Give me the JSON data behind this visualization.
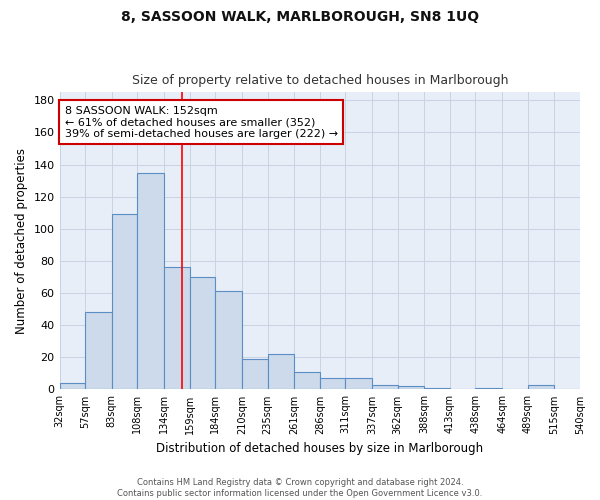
{
  "title1": "8, SASSOON WALK, MARLBOROUGH, SN8 1UQ",
  "title2": "Size of property relative to detached houses in Marlborough",
  "xlabel": "Distribution of detached houses by size in Marlborough",
  "ylabel": "Number of detached properties",
  "bin_edges": [
    32,
    57,
    83,
    108,
    134,
    159,
    184,
    210,
    235,
    261,
    286,
    311,
    337,
    362,
    388,
    413,
    438,
    464,
    489,
    515,
    540
  ],
  "bar_heights": [
    4,
    48,
    109,
    135,
    76,
    70,
    61,
    19,
    22,
    11,
    7,
    7,
    3,
    2,
    1,
    0,
    1,
    0,
    3,
    0
  ],
  "bar_color": "#ccdaeb",
  "bar_edge_color": "#5b8ec4",
  "red_line_x": 152,
  "annotation_line1": "8 SASSOON WALK: 152sqm",
  "annotation_line2": "← 61% of detached houses are smaller (352)",
  "annotation_line3": "39% of semi-detached houses are larger (222) →",
  "annotation_box_color": "white",
  "annotation_box_edge_color": "#cc0000",
  "grid_color": "#c8d4e4",
  "background_color": "#e8eef8",
  "footer_text": "Contains HM Land Registry data © Crown copyright and database right 2024.\nContains public sector information licensed under the Open Government Licence v3.0.",
  "ylim": [
    0,
    185
  ],
  "yticks": [
    0,
    20,
    40,
    60,
    80,
    100,
    120,
    140,
    160,
    180
  ]
}
